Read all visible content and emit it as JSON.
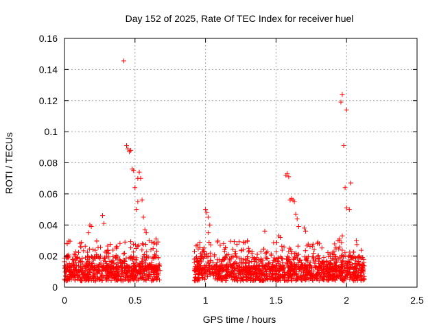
{
  "chart_data": {
    "type": "scatter",
    "title": "Day 152 of 2025, Rate Of TEC Index for receiver huel",
    "xlabel": "GPS time / hours",
    "ylabel": "ROTI / TECUs",
    "xlim": [
      0,
      2.5
    ],
    "ylim": [
      0,
      0.16
    ],
    "grid": true,
    "marker": "+",
    "color": "#ff0000",
    "x_ticks": [
      0,
      0.5,
      1,
      1.5,
      2,
      2.5
    ],
    "x_tick_labels": [
      "0",
      "0.5",
      "1",
      "1.5",
      "2",
      "2.5"
    ],
    "y_ticks": [
      0,
      0.02,
      0.04,
      0.06,
      0.08,
      0.1,
      0.12,
      0.14,
      0.16
    ],
    "y_tick_labels": [
      "0",
      "0.02",
      "0.04",
      "0.06",
      "0.08",
      "0.1",
      "0.12",
      "0.14",
      "0.16"
    ],
    "segments": [
      {
        "x_start": 0.0,
        "x_end": 0.68
      },
      {
        "x_start": 0.92,
        "x_end": 2.13
      }
    ],
    "highlight_points": [
      {
        "x": 0.42,
        "y": 0.1455
      },
      {
        "x": 0.44,
        "y": 0.091
      },
      {
        "x": 0.45,
        "y": 0.089
      },
      {
        "x": 0.46,
        "y": 0.087
      },
      {
        "x": 0.47,
        "y": 0.088
      },
      {
        "x": 0.48,
        "y": 0.076
      },
      {
        "x": 0.49,
        "y": 0.075
      },
      {
        "x": 0.5,
        "y": 0.064
      },
      {
        "x": 0.51,
        "y": 0.05
      },
      {
        "x": 0.52,
        "y": 0.055
      },
      {
        "x": 0.52,
        "y": 0.07
      },
      {
        "x": 0.53,
        "y": 0.074
      },
      {
        "x": 0.54,
        "y": 0.07
      },
      {
        "x": 0.55,
        "y": 0.056
      },
      {
        "x": 0.56,
        "y": 0.045
      },
      {
        "x": 0.57,
        "y": 0.037
      },
      {
        "x": 0.58,
        "y": 0.035
      },
      {
        "x": 0.6,
        "y": 0.03
      },
      {
        "x": 0.62,
        "y": 0.029
      },
      {
        "x": 0.65,
        "y": 0.031
      },
      {
        "x": 0.27,
        "y": 0.046
      },
      {
        "x": 0.28,
        "y": 0.041
      },
      {
        "x": 0.18,
        "y": 0.04
      },
      {
        "x": 0.19,
        "y": 0.039
      },
      {
        "x": 0.17,
        "y": 0.035
      },
      {
        "x": 1.0,
        "y": 0.05
      },
      {
        "x": 1.01,
        "y": 0.048
      },
      {
        "x": 1.02,
        "y": 0.045
      },
      {
        "x": 1.03,
        "y": 0.04
      },
      {
        "x": 1.02,
        "y": 0.035
      },
      {
        "x": 1.57,
        "y": 0.072
      },
      {
        "x": 1.58,
        "y": 0.073
      },
      {
        "x": 1.59,
        "y": 0.071
      },
      {
        "x": 1.6,
        "y": 0.056
      },
      {
        "x": 1.61,
        "y": 0.057
      },
      {
        "x": 1.62,
        "y": 0.056
      },
      {
        "x": 1.63,
        "y": 0.055
      },
      {
        "x": 1.64,
        "y": 0.047
      },
      {
        "x": 1.65,
        "y": 0.044
      },
      {
        "x": 1.66,
        "y": 0.039
      },
      {
        "x": 1.7,
        "y": 0.038
      },
      {
        "x": 1.71,
        "y": 0.036
      },
      {
        "x": 1.52,
        "y": 0.033
      },
      {
        "x": 1.53,
        "y": 0.032
      },
      {
        "x": 1.42,
        "y": 0.036
      },
      {
        "x": 1.97,
        "y": 0.124
      },
      {
        "x": 1.96,
        "y": 0.119
      },
      {
        "x": 2.0,
        "y": 0.114
      },
      {
        "x": 1.98,
        "y": 0.091
      },
      {
        "x": 2.03,
        "y": 0.067
      },
      {
        "x": 1.99,
        "y": 0.064
      },
      {
        "x": 2.0,
        "y": 0.051
      },
      {
        "x": 2.02,
        "y": 0.05
      },
      {
        "x": 1.95,
        "y": 0.031
      },
      {
        "x": 1.94,
        "y": 0.03
      },
      {
        "x": 2.07,
        "y": 0.03
      },
      {
        "x": 1.97,
        "y": 0.033
      }
    ]
  }
}
